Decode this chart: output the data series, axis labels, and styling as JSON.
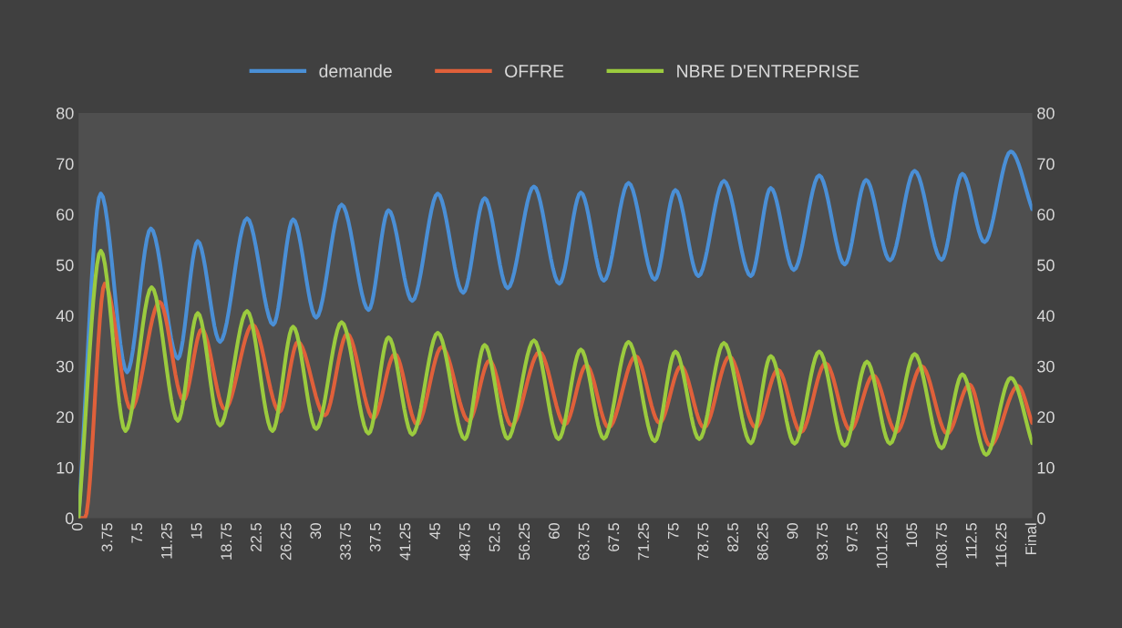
{
  "chart_data": {
    "type": "line",
    "xlim": [
      0,
      120
    ],
    "xticks": [
      0,
      3.75,
      7.5,
      11.25,
      15,
      18.75,
      22.5,
      26.25,
      30,
      33.75,
      37.5,
      41.25,
      45,
      48.75,
      52.5,
      56.25,
      60,
      63.75,
      67.5,
      71.25,
      75,
      78.75,
      82.5,
      86.25,
      90,
      93.75,
      97.5,
      101.25,
      105,
      108.75,
      112.5,
      116.25,
      {
        "value": 120,
        "label": "Final"
      }
    ],
    "ylim": [
      0,
      80
    ],
    "yticks": [
      0,
      10,
      20,
      30,
      40,
      50,
      60,
      70,
      80
    ],
    "y2lim": [
      0,
      80
    ],
    "y2ticks": [
      0,
      10,
      20,
      30,
      40,
      50,
      60,
      70,
      80
    ],
    "grid": false,
    "legend": "top",
    "marker": "none",
    "line_style": "solid",
    "series": [
      {
        "name": "demande",
        "color": "#4a8fd6",
        "x": [
          0,
          2.8,
          6.1,
          9.1,
          12.5,
          15.0,
          17.8,
          21.2,
          24.5,
          27.0,
          29.9,
          33.1,
          36.5,
          39.0,
          42.0,
          45.2,
          48.4,
          51.1,
          54.0,
          57.3,
          60.5,
          63.2,
          66.1,
          69.2,
          72.5,
          75.1,
          78.0,
          81.2,
          84.6,
          87.1,
          90.0,
          93.2,
          96.4,
          99.1,
          102.1,
          105.2,
          108.6,
          111.2,
          114.0,
          117.3,
          120
        ],
        "values": [
          0,
          64.1,
          28.8,
          57.2,
          31.5,
          54.7,
          34.8,
          59.2,
          38.2,
          59.0,
          39.6,
          61.9,
          41.1,
          60.8,
          42.9,
          64.1,
          44.5,
          63.2,
          45.4,
          65.5,
          46.3,
          64.3,
          46.9,
          66.2,
          47.1,
          64.8,
          47.8,
          66.6,
          47.8,
          65.2,
          49.0,
          67.7,
          50.1,
          66.8,
          50.9,
          68.6,
          51.0,
          68.0,
          54.5,
          72.4,
          61.0
        ]
      },
      {
        "name": "OFFRE",
        "color": "#e0603a",
        "x": [
          0,
          0.8,
          3.3,
          6.6,
          10.2,
          13.2,
          15.5,
          18.4,
          21.9,
          25.3,
          27.6,
          31.0,
          33.8,
          37.1,
          39.8,
          42.6,
          45.7,
          49.1,
          51.7,
          54.5,
          58.0,
          61.2,
          63.9,
          66.7,
          70.1,
          73.1,
          75.8,
          78.7,
          81.9,
          85.2,
          88.0,
          90.9,
          94.0,
          97.1,
          100.0,
          102.9,
          106.1,
          109.3,
          112.1,
          114.7,
          118.2,
          120
        ],
        "values": [
          0,
          0,
          46.3,
          21.5,
          42.7,
          23.3,
          37.3,
          21.5,
          38.2,
          21.0,
          34.8,
          20.3,
          36.4,
          19.7,
          32.4,
          18.5,
          33.8,
          19.2,
          31.1,
          18.3,
          32.8,
          18.5,
          30.2,
          17.9,
          32.0,
          18.8,
          30.0,
          17.9,
          31.9,
          17.9,
          29.3,
          17.0,
          30.6,
          17.4,
          28.2,
          17.0,
          30.0,
          16.7,
          26.4,
          14.3,
          26.1,
          18.8
        ]
      },
      {
        "name": "NBRE D'ENTREPRISE",
        "color": "#9bcb3e",
        "x": [
          0,
          2.8,
          5.9,
          9.2,
          12.5,
          15.0,
          17.8,
          21.2,
          24.4,
          27.0,
          29.9,
          33.1,
          36.5,
          39.0,
          42.0,
          45.2,
          48.6,
          51.1,
          54.0,
          57.3,
          60.4,
          63.2,
          66.1,
          69.2,
          72.5,
          75.1,
          78.1,
          81.2,
          84.6,
          87.1,
          90.1,
          93.2,
          96.4,
          99.2,
          102.1,
          105.2,
          108.6,
          111.2,
          114.2,
          117.3,
          120
        ],
        "values": [
          0,
          52.8,
          17.2,
          45.6,
          19.2,
          40.5,
          18.3,
          40.9,
          17.2,
          37.8,
          17.6,
          38.7,
          16.7,
          35.7,
          16.5,
          36.6,
          15.6,
          34.2,
          15.7,
          35.1,
          15.6,
          33.3,
          15.7,
          34.8,
          15.2,
          32.9,
          15.6,
          34.6,
          14.8,
          32.0,
          14.7,
          32.9,
          14.3,
          30.9,
          14.7,
          32.4,
          13.8,
          28.4,
          12.5,
          27.7,
          14.8
        ]
      }
    ]
  }
}
